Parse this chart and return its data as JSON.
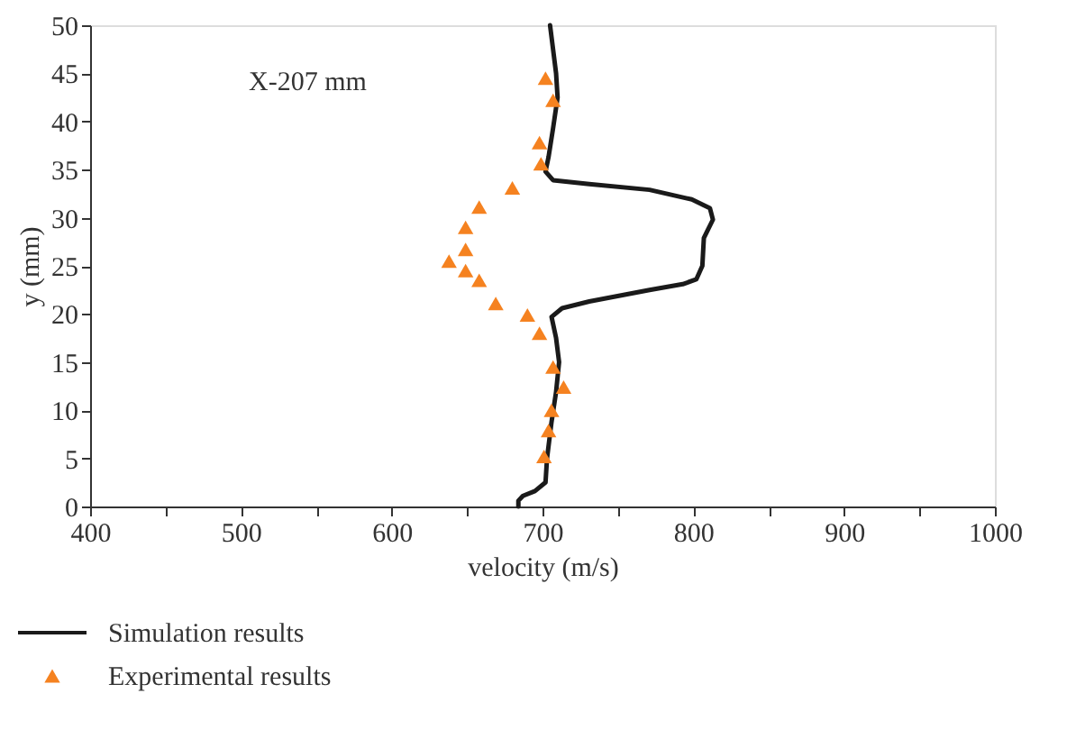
{
  "chart_data": {
    "type": "line",
    "xlabel": "velocity (m/s)",
    "ylabel": "y (mm)",
    "annotations": [
      "X-207 mm"
    ],
    "xlim": [
      400,
      1000
    ],
    "ylim": [
      0,
      50
    ],
    "xticks": [
      400,
      {
        "value": 450,
        "label": null
      },
      500,
      {
        "value": 550,
        "label": null
      },
      600,
      {
        "value": 650,
        "label": null
      },
      700,
      {
        "value": 750,
        "label": null
      },
      800,
      {
        "value": 850,
        "label": null
      },
      900,
      {
        "value": 950,
        "label": null
      },
      1000
    ],
    "yticks": [
      0,
      5,
      10,
      15,
      20,
      25,
      30,
      35,
      40,
      45,
      50
    ],
    "grid": false,
    "legend": "bottom",
    "series": [
      {
        "name": "Simulation results",
        "color": "#1a1a1a",
        "line_style": "solid",
        "marker": "none",
        "x": [
          684,
          684,
          687,
          695,
          702,
          703,
          706,
          709,
          711,
          709,
          706,
          713,
          731,
          771,
          793,
          802,
          806,
          807,
          813,
          811,
          799,
          771,
          731,
          707,
          702,
          704,
          707,
          710,
          709,
          705
        ],
        "values": [
          0,
          0.6,
          1.1,
          1.6,
          2.5,
          5.0,
          8.8,
          11.9,
          15.0,
          17.5,
          19.7,
          20.6,
          21.3,
          22.5,
          23.1,
          23.6,
          25.0,
          27.9,
          29.8,
          31.0,
          31.9,
          32.9,
          33.5,
          33.9,
          34.8,
          36.3,
          39.3,
          42.5,
          45,
          50
        ]
      },
      {
        "name": "Experimental results",
        "type": "scatter",
        "color": "#f58220",
        "marker": "triangle",
        "x": [
          701,
          704,
          706,
          714,
          707,
          698,
          690,
          669,
          658,
          649,
          638,
          649,
          649,
          658,
          680,
          699,
          698,
          707,
          702
        ],
        "values": [
          5.2,
          7.9,
          10.0,
          12.4,
          14.5,
          18.0,
          19.9,
          21.1,
          23.5,
          24.5,
          25.5,
          26.7,
          29.0,
          31.1,
          33.1,
          35.6,
          37.8,
          42.2,
          44.5
        ]
      }
    ]
  }
}
